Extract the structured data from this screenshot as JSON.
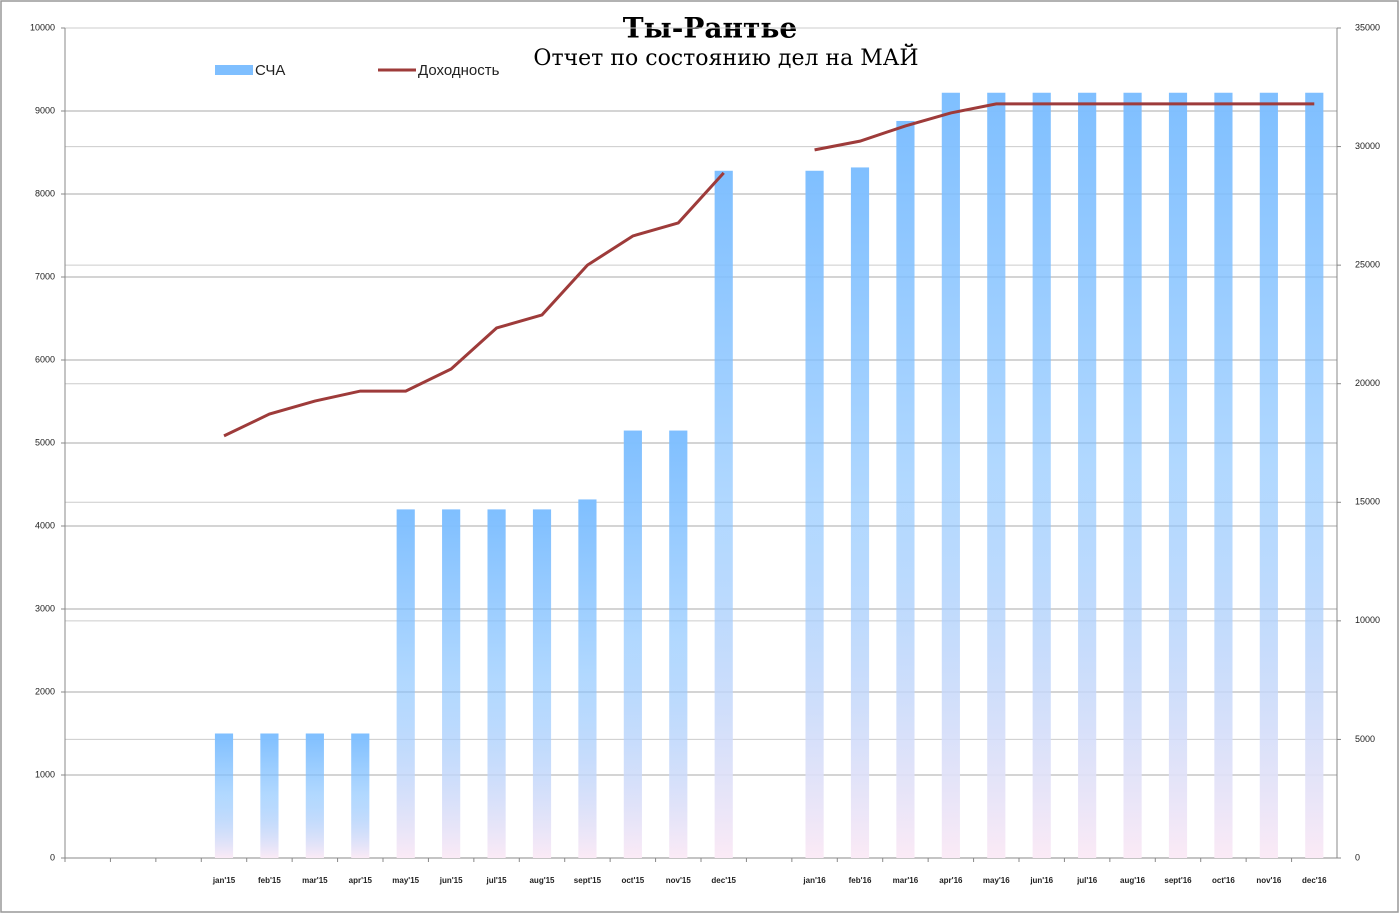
{
  "chart_data": {
    "type": "bar-line",
    "title": "Ты-Рантье",
    "subtitle": "Отчет по состоянию дел на МАЙ",
    "categories": [
      null,
      null,
      null,
      "jan'15",
      "feb'15",
      "mar'15",
      "apr'15",
      "may'15",
      "jun'15",
      "jul'15",
      "aug'15",
      "sept'15",
      "oct'15",
      "nov'15",
      "dec'15",
      null,
      "jan'16",
      "feb'16",
      "mar'16",
      "apr'16",
      "may'16",
      "jun'16",
      "jul'16",
      "aug'16",
      "sept'16",
      "oct'16",
      "nov'16",
      "dec'16"
    ],
    "series": [
      {
        "name": "СЧА",
        "type": "bar",
        "color": "#7fbfff",
        "values": [
          null,
          null,
          null,
          1500,
          1500,
          1500,
          1500,
          4200,
          4200,
          4200,
          4200,
          4320,
          5150,
          5150,
          8280,
          null,
          8280,
          8320,
          8880,
          9220,
          9220,
          9220,
          9220,
          9220,
          9220,
          9220,
          9220,
          9220
        ]
      },
      {
        "name": "Доходность",
        "type": "line",
        "axis": "y2",
        "color": "#9e3b3a",
        "values": [
          null,
          null,
          null,
          17800,
          18720,
          19270,
          19690,
          19690,
          20620,
          22350,
          22900,
          25000,
          26230,
          26780,
          28890,
          null,
          29860,
          30230,
          30870,
          31420,
          31800,
          31800,
          31800,
          31800,
          31800,
          31800,
          31800,
          31800
        ]
      }
    ],
    "ylim": [
      0,
      10000
    ],
    "yticks": [
      0,
      1000,
      2000,
      3000,
      4000,
      5000,
      6000,
      7000,
      8000,
      9000,
      10000
    ],
    "y2lim": [
      0,
      35000
    ],
    "y2ticks": [
      0,
      5000,
      10000,
      15000,
      20000,
      25000,
      30000,
      35000
    ],
    "grid": true,
    "legend": "top-left"
  }
}
